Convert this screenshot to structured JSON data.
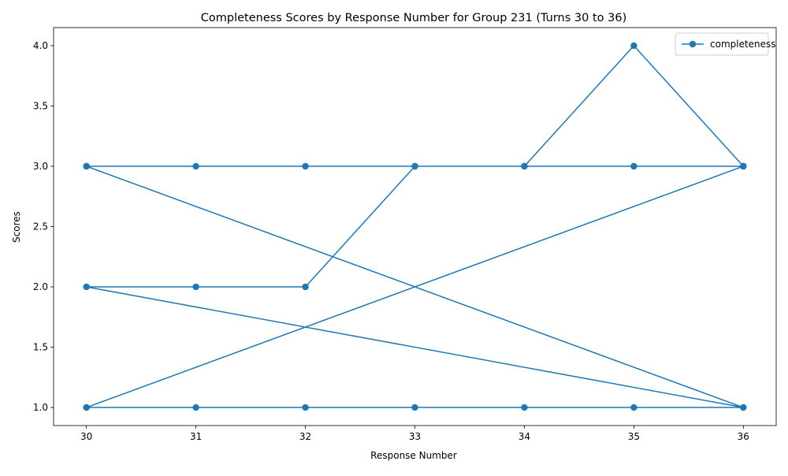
{
  "chart_data": {
    "type": "line",
    "title": "Completeness Scores by Response Number for Group 231 (Turns 30 to 36)",
    "xlabel": "Response Number",
    "ylabel": "Scores",
    "xlim": [
      29.7,
      36.3
    ],
    "ylim": [
      0.85,
      4.15
    ],
    "xticks": [
      30,
      31,
      32,
      33,
      34,
      35,
      36
    ],
    "yticks": [
      1.0,
      1.5,
      2.0,
      2.5,
      3.0,
      3.5,
      4.0
    ],
    "xtick_labels": [
      "30",
      "31",
      "32",
      "33",
      "34",
      "35",
      "36"
    ],
    "ytick_labels": [
      "1.0",
      "1.5",
      "2.0",
      "2.5",
      "3.0",
      "3.5",
      "4.0"
    ],
    "grid": false,
    "legend_position": "top-right",
    "series": [
      {
        "name": "completeness",
        "color": "#1f77b4",
        "marker": "circle",
        "points": [
          [
            30,
            3
          ],
          [
            31,
            3
          ],
          [
            32,
            3
          ],
          [
            33,
            3
          ],
          [
            34,
            3
          ],
          [
            35,
            4
          ],
          [
            36,
            3
          ],
          [
            30,
            3
          ],
          [
            36,
            1
          ],
          [
            30,
            2
          ],
          [
            31,
            2
          ],
          [
            32,
            2
          ],
          [
            33,
            3
          ],
          [
            34,
            3
          ],
          [
            35,
            3
          ],
          [
            36,
            3
          ],
          [
            30,
            1
          ],
          [
            36,
            3
          ],
          [
            30,
            1
          ],
          [
            31,
            1
          ],
          [
            32,
            1
          ],
          [
            33,
            1
          ],
          [
            34,
            1
          ],
          [
            35,
            1
          ],
          [
            36,
            1
          ]
        ]
      }
    ]
  }
}
